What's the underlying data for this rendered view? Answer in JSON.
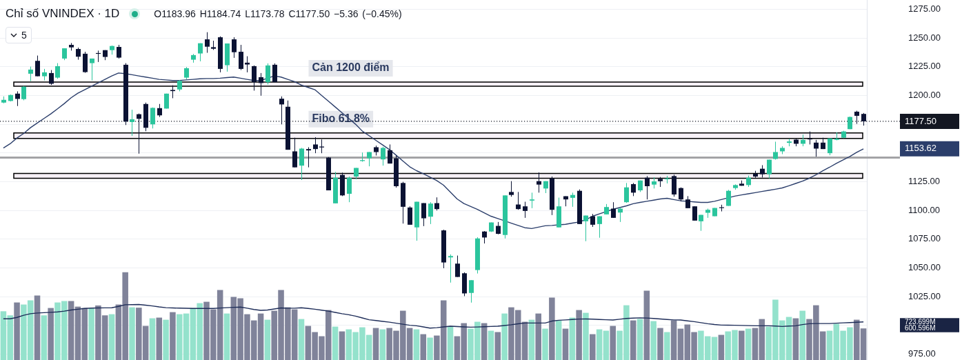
{
  "chart_data": {
    "type": "candlestick",
    "title": "Chỉ số VNINDEX · 1D",
    "subtitle": "O1183.96 H1184.74 L1173.78 C1177.50 −5.36 (−0.45%)",
    "categories": [
      null,
      null,
      null,
      null,
      null,
      null,
      null,
      null,
      null,
      null,
      null,
      null,
      null,
      null,
      null,
      null,
      null,
      null,
      null,
      null,
      null,
      null,
      null,
      null,
      null,
      null,
      null,
      null,
      null,
      null,
      null,
      null,
      null,
      null,
      null,
      null,
      null,
      null,
      null,
      null,
      null,
      null,
      null,
      null,
      null,
      null,
      null,
      null,
      null,
      null,
      null,
      null,
      null,
      null,
      null,
      null,
      null,
      null,
      null,
      null,
      null,
      null,
      null,
      null,
      null,
      null,
      null,
      null,
      null,
      null,
      null,
      null,
      null,
      null,
      null,
      null,
      null,
      null,
      null,
      null,
      null,
      null,
      null,
      null,
      null,
      null,
      null,
      null,
      null,
      null,
      null,
      null,
      null,
      null,
      null,
      null,
      null,
      null,
      null,
      null,
      null,
      null,
      null,
      null,
      null,
      null,
      null,
      null,
      null,
      null,
      null,
      null,
      null,
      null,
      null,
      null,
      null,
      null,
      null,
      null,
      null,
      null,
      null,
      null,
      null,
      null,
      null,
      null
    ],
    "ohlc": [
      [
        1193.8,
        1199.2,
        1193.2,
        1196.2
      ],
      [
        1195.2,
        1200.8,
        1194.8,
        1200.4
      ],
      [
        1201.6,
        1203.6,
        1190.8,
        1197.0
      ],
      [
        1196.8,
        1208.2,
        1195.8,
        1207.6
      ],
      [
        1218.9,
        1225.1,
        1212.5,
        1222.5
      ],
      [
        1230.1,
        1234.7,
        1216.7,
        1216.7
      ],
      [
        1216.7,
        1223.1,
        1213.1,
        1220.1
      ],
      [
        1219.5,
        1222.1,
        1209.2,
        1210.2
      ],
      [
        1215.5,
        1228.1,
        1214.5,
        1225.5
      ],
      [
        1232.1,
        1241.0,
        1230.7,
        1241.0
      ],
      [
        1244.0,
        1245.6,
        1239.0,
        1241.8
      ],
      [
        1240.4,
        1241.6,
        1231.1,
        1233.7
      ],
      [
        1236.3,
        1238.0,
        1219.7,
        1220.3
      ],
      [
        1228.1,
        1232.1,
        1213.1,
        1232.1
      ],
      [
        1236.9,
        1239.0,
        1229.1,
        1236.5
      ],
      [
        1239.4,
        1239.4,
        1230.7,
        1233.5
      ],
      [
        1239.4,
        1243.4,
        1235.5,
        1243.0
      ],
      [
        1242.2,
        1244.0,
        1232.1,
        1232.9
      ],
      [
        1226.7,
        1228.1,
        1174.3,
        1177.3
      ],
      [
        1176.9,
        1187.6,
        1164.9,
        1179.3
      ],
      [
        1183.7,
        1184.3,
        1149.4,
        1179.7
      ],
      [
        1192.6,
        1193.8,
        1168.9,
        1171.9
      ],
      [
        1174.9,
        1189.6,
        1171.3,
        1189.2
      ],
      [
        1189.0,
        1192.6,
        1181.3,
        1182.7
      ],
      [
        1188.6,
        1201.6,
        1188.6,
        1201.6
      ],
      [
        1204.8,
        1208.8,
        1197.6,
        1203.8
      ],
      [
        1205.2,
        1213.5,
        1203.6,
        1212.7
      ],
      [
        1215.5,
        1224.7,
        1214.1,
        1223.7
      ],
      [
        1231.1,
        1236.1,
        1228.5,
        1235.1
      ],
      [
        1236.5,
        1245.4,
        1229.7,
        1245.4
      ],
      [
        1248.8,
        1255.0,
        1237.1,
        1242.4
      ],
      [
        1242.0,
        1247.6,
        1239.6,
        1240.6
      ],
      [
        1250.6,
        1251.4,
        1220.1,
        1223.1
      ],
      [
        1226.3,
        1245.2,
        1220.7,
        1245.2
      ],
      [
        1248.8,
        1250.6,
        1232.7,
        1237.6
      ],
      [
        1238.0,
        1244.0,
        1222.1,
        1223.1
      ],
      [
        1228.5,
        1234.1,
        1220.1,
        1226.9
      ],
      [
        1225.5,
        1226.1,
        1204.2,
        1211.6
      ],
      [
        1215.9,
        1219.5,
        1199.8,
        1210.8
      ],
      [
        1211.6,
        1227.9,
        1209.6,
        1226.1
      ],
      [
        1226.7,
        1227.9,
        1211.6,
        1211.6
      ],
      [
        1197.2,
        1199.2,
        1174.9,
        1192.2
      ],
      [
        1190.2,
        1195.6,
        1152.8,
        1152.8
      ],
      [
        1151.4,
        1163.3,
        1137.5,
        1137.5
      ],
      [
        1139.0,
        1154.4,
        1126.5,
        1153.8
      ],
      [
        1153.4,
        1155.0,
        1137.5,
        1152.2
      ],
      [
        1157.4,
        1163.7,
        1149.8,
        1153.4
      ],
      [
        1155.6,
        1161.8,
        1149.8,
        1154.8
      ],
      [
        1146.0,
        1146.4,
        1117.5,
        1117.5
      ],
      [
        1106.2,
        1133.5,
        1106.2,
        1128.5
      ],
      [
        1130.9,
        1132.9,
        1112.5,
        1113.1
      ],
      [
        1114.5,
        1129.5,
        1107.2,
        1128.5
      ],
      [
        1129.5,
        1137.0,
        1127.1,
        1137.0
      ],
      [
        1143.0,
        1150.4,
        1142.4,
        1143.8
      ],
      [
        1145.4,
        1150.8,
        1138.4,
        1150.8
      ],
      [
        1155.0,
        1156.4,
        1147.8,
        1150.8
      ],
      [
        1144.4,
        1155.4,
        1139.0,
        1154.4
      ],
      [
        1152.4,
        1157.4,
        1140.8,
        1140.8
      ],
      [
        1145.4,
        1147.8,
        1119.9,
        1121.1
      ],
      [
        1123.9,
        1124.9,
        1088.6,
        1103.2
      ],
      [
        1102.6,
        1103.6,
        1087.6,
        1087.6
      ],
      [
        1085.3,
        1107.6,
        1073.7,
        1107.6
      ],
      [
        1106.4,
        1106.4,
        1086.4,
        1093.2
      ],
      [
        1094.6,
        1107.2,
        1088.2,
        1106.0
      ],
      [
        1106.4,
        1111.4,
        1100.0,
        1101.2
      ],
      [
        1082.7,
        1083.3,
        1049.8,
        1054.8
      ],
      [
        1059.2,
        1061.8,
        1037.3,
        1060.4
      ],
      [
        1053.8,
        1060.8,
        1042.2,
        1042.2
      ],
      [
        1045.4,
        1046.2,
        1025.5,
        1027.9
      ],
      [
        1028.3,
        1039.4,
        1019.9,
        1039.4
      ],
      [
        1048.2,
        1076.7,
        1045.2,
        1075.7
      ],
      [
        1081.7,
        1082.1,
        1071.3,
        1076.5
      ],
      [
        1081.7,
        1089.6,
        1081.3,
        1089.6
      ],
      [
        1086.6,
        1090.0,
        1079.3,
        1079.7
      ],
      [
        1078.7,
        1113.1,
        1075.7,
        1113.1
      ],
      [
        1116.1,
        1125.5,
        1112.0,
        1113.5
      ],
      [
        1105.2,
        1116.1,
        1100.6,
        1101.2
      ],
      [
        1103.6,
        1107.6,
        1093.6,
        1099.6
      ],
      [
        1108.6,
        1115.5,
        1102.0,
        1109.6
      ],
      [
        1125.5,
        1133.1,
        1115.5,
        1122.5
      ],
      [
        1119.1,
        1125.5,
        1115.1,
        1125.5
      ],
      [
        1127.9,
        1129.5,
        1096.0,
        1100.6
      ],
      [
        1085.3,
        1111.2,
        1085.3,
        1103.6
      ],
      [
        1112.4,
        1112.4,
        1103.6,
        1109.6
      ],
      [
        1111.0,
        1115.5,
        1103.2,
        1113.5
      ],
      [
        1117.1,
        1118.3,
        1088.2,
        1088.2
      ],
      [
        1090.6,
        1095.6,
        1073.3,
        1095.6
      ],
      [
        1095.0,
        1097.0,
        1085.7,
        1087.6
      ],
      [
        1088.2,
        1095.0,
        1076.3,
        1095.0
      ],
      [
        1096.6,
        1105.6,
        1096.6,
        1103.0
      ],
      [
        1101.6,
        1107.2,
        1093.6,
        1093.6
      ],
      [
        1098.2,
        1102.6,
        1090.0,
        1101.6
      ],
      [
        1107.2,
        1123.9,
        1106.6,
        1120.1
      ],
      [
        1122.9,
        1123.9,
        1112.5,
        1115.5
      ],
      [
        1117.5,
        1126.1,
        1116.1,
        1126.1
      ],
      [
        1128.5,
        1129.9,
        1109.6,
        1121.1
      ],
      [
        1122.5,
        1128.9,
        1119.1,
        1125.3
      ],
      [
        1127.5,
        1129.1,
        1120.5,
        1125.5
      ],
      [
        1127.1,
        1130.1,
        1123.5,
        1127.9
      ],
      [
        1129.9,
        1131.1,
        1112.0,
        1113.9
      ],
      [
        1119.5,
        1120.1,
        1108.0,
        1109.6
      ],
      [
        1109.6,
        1112.5,
        1102.0,
        1102.0
      ],
      [
        1103.6,
        1103.6,
        1091.2,
        1091.2
      ],
      [
        1090.6,
        1096.2,
        1082.3,
        1096.2
      ],
      [
        1098.0,
        1101.6,
        1093.6,
        1100.6
      ],
      [
        1095.0,
        1102.2,
        1095.0,
        1102.2
      ],
      [
        1102.8,
        1105.0,
        1099.2,
        1102.2
      ],
      [
        1104.0,
        1117.9,
        1104.0,
        1117.1
      ],
      [
        1119.5,
        1122.7,
        1118.1,
        1122.1
      ],
      [
        1123.3,
        1126.1,
        1121.5,
        1121.5
      ],
      [
        1122.1,
        1130.3,
        1120.5,
        1128.5
      ],
      [
        1131.9,
        1134.5,
        1128.5,
        1129.5
      ],
      [
        1136.3,
        1139.4,
        1128.7,
        1131.5
      ],
      [
        1131.5,
        1144.2,
        1127.9,
        1144.2
      ],
      [
        1144.8,
        1159.8,
        1144.2,
        1150.8
      ],
      [
        1151.4,
        1155.8,
        1149.0,
        1154.4
      ],
      [
        1158.8,
        1162.4,
        1155.8,
        1160.0
      ],
      [
        1161.6,
        1162.4,
        1155.8,
        1158.0
      ],
      [
        1158.0,
        1165.9,
        1155.8,
        1161.4
      ],
      [
        1162.5,
        1168.7,
        1157.4,
        1161.8
      ],
      [
        1159.0,
        1161.4,
        1146.8,
        1153.8
      ],
      [
        1159.0,
        1163.3,
        1153.4,
        1153.4
      ],
      [
        1149.8,
        1162.7,
        1148.0,
        1162.7
      ],
      [
        1161.4,
        1167.9,
        1161.0,
        1162.5
      ],
      [
        1163.3,
        1169.3,
        1162.9,
        1168.7
      ],
      [
        1170.7,
        1181.7,
        1170.7,
        1181.3
      ],
      [
        1185.9,
        1186.7,
        1175.3,
        1182.3
      ],
      [
        1183.96,
        1184.74,
        1173.78,
        1177.5
      ]
    ],
    "colors": [
      "#2bc59d",
      "#2bc59d",
      "#0b1233",
      "#2bc59d",
      "#2bc59d",
      "#0b1233",
      "#2bc59d",
      "#0b1233",
      "#2bc59d",
      "#2bc59d",
      "#0b1233",
      "#0b1233",
      "#0b1233",
      "#2bc59d",
      "#0b1233",
      "#0b1233",
      "#2bc59d",
      "#0b1233",
      "#0b1233",
      "#2bc59d",
      "#0b1233",
      "#0b1233",
      "#2bc59d",
      "#0b1233",
      "#2bc59d",
      "#0b1233",
      "#2bc59d",
      "#2bc59d",
      "#2bc59d",
      "#2bc59d",
      "#0b1233",
      "#0b1233",
      "#0b1233",
      "#2bc59d",
      "#0b1233",
      "#0b1233",
      "#0b1233",
      "#0b1233",
      "#0b1233",
      "#2bc59d",
      "#0b1233",
      "#0b1233",
      "#0b1233",
      "#0b1233",
      "#2bc59d",
      "#0b1233",
      "#0b1233",
      "#0b1233",
      "#0b1233",
      "#2bc59d",
      "#0b1233",
      "#2bc59d",
      "#2bc59d",
      "#2bc59d",
      "#2bc59d",
      "#0b1233",
      "#2bc59d",
      "#0b1233",
      "#0b1233",
      "#0b1233",
      "#0b1233",
      "#2bc59d",
      "#0b1233",
      "#2bc59d",
      "#0b1233",
      "#0b1233",
      "#2bc59d",
      "#0b1233",
      "#0b1233",
      "#2bc59d",
      "#2bc59d",
      "#0b1233",
      "#2bc59d",
      "#0b1233",
      "#2bc59d",
      "#0b1233",
      "#0b1233",
      "#0b1233",
      "#2bc59d",
      "#0b1233",
      "#2bc59d",
      "#0b1233",
      "#2bc59d",
      "#0b1233",
      "#2bc59d",
      "#0b1233",
      "#2bc59d",
      "#0b1233",
      "#2bc59d",
      "#2bc59d",
      "#0b1233",
      "#2bc59d",
      "#2bc59d",
      "#0b1233",
      "#2bc59d",
      "#0b1233",
      "#2bc59d",
      "#0b1233",
      "#2bc59d",
      "#0b1233",
      "#0b1233",
      "#0b1233",
      "#0b1233",
      "#2bc59d",
      "#2bc59d",
      "#2bc59d",
      "#0b1233",
      "#2bc59d",
      "#2bc59d",
      "#0b1233",
      "#2bc59d",
      "#0b1233",
      "#0b1233",
      "#2bc59d",
      "#2bc59d",
      "#2bc59d",
      "#2bc59d",
      "#0b1233",
      "#2bc59d",
      "#0b1233",
      "#0b1233",
      "#0b1233",
      "#2bc59d",
      "#2bc59d",
      "#2bc59d",
      "#2bc59d",
      "#0b1233",
      "#0b1233"
    ],
    "series": [
      {
        "type": "line",
        "color": "#2b3e6b",
        "values": [
          1154.3,
          1158,
          1163,
          1167,
          1172,
          1176,
          1180,
          1184,
          1188.4,
          1193,
          1198,
          1202,
          1205,
          1208,
          1211,
          1214,
          1217,
          1219.5,
          1219,
          1218,
          1217,
          1216,
          1215,
          1214,
          1213.5,
          1213,
          1213,
          1213.5,
          1214,
          1214.5,
          1214.7,
          1214.7,
          1215,
          1215.5,
          1216,
          1215,
          1214,
          1213,
          1213,
          1215,
          1217,
          1216,
          1214,
          1212,
          1209,
          1207,
          1205,
          1200,
          1195,
          1190,
          1185,
          1180,
          1175,
          1169,
          1165,
          1161,
          1157,
          1153,
          1148,
          1143,
          1138,
          1134.6,
          1132,
          1129,
          1126,
          1122,
          1116,
          1110,
          1106,
          1103.5,
          1101,
          1098,
          1095,
          1093,
          1091,
          1089,
          1087,
          1085,
          1084.3,
          1085.5,
          1086.7,
          1087,
          1087.5,
          1088,
          1089,
          1090,
          1092,
          1095,
          1097,
          1099,
          1101,
          1102.5,
          1104,
          1105.9,
          1107,
          1108,
          1109,
          1110,
          1110.6,
          1109.5,
          1108.4,
          1108,
          1107.5,
          1107,
          1107,
          1108,
          1109.5,
          1111,
          1112.5,
          1113.5,
          1114.5,
          1115.5,
          1116.5,
          1117.5,
          1118.5,
          1119.6,
          1121.5,
          1123.5,
          1125.5,
          1128,
          1131,
          1134.5,
          1137.6,
          1141,
          1144,
          1147,
          1150.5,
          1153.62
        ]
      },
      {
        "type": "bar",
        "axis": "y2",
        "colors": [
          "#94e2cc",
          "#94e2cc",
          "#80839a",
          "#94e2cc",
          "#94e2cc",
          "#80839a",
          "#94e2cc",
          "#80839a",
          "#94e2cc",
          "#94e2cc",
          "#80839a",
          "#80839a",
          "#80839a",
          "#94e2cc",
          "#80839a",
          "#80839a",
          "#94e2cc",
          "#80839a",
          "#80839a",
          "#94e2cc",
          "#80839a",
          "#80839a",
          "#94e2cc",
          "#80839a",
          "#94e2cc",
          "#80839a",
          "#94e2cc",
          "#94e2cc",
          "#94e2cc",
          "#94e2cc",
          "#80839a",
          "#80839a",
          "#80839a",
          "#94e2cc",
          "#80839a",
          "#80839a",
          "#80839a",
          "#80839a",
          "#80839a",
          "#94e2cc",
          "#80839a",
          "#80839a",
          "#80839a",
          "#80839a",
          "#94e2cc",
          "#80839a",
          "#80839a",
          "#80839a",
          "#80839a",
          "#94e2cc",
          "#80839a",
          "#94e2cc",
          "#94e2cc",
          "#94e2cc",
          "#94e2cc",
          "#80839a",
          "#94e2cc",
          "#80839a",
          "#80839a",
          "#80839a",
          "#80839a",
          "#94e2cc",
          "#80839a",
          "#94e2cc",
          "#80839a",
          "#80839a",
          "#94e2cc",
          "#80839a",
          "#80839a",
          "#94e2cc",
          "#94e2cc",
          "#80839a",
          "#94e2cc",
          "#80839a",
          "#94e2cc",
          "#80839a",
          "#80839a",
          "#80839a",
          "#94e2cc",
          "#80839a",
          "#94e2cc",
          "#80839a",
          "#94e2cc",
          "#80839a",
          "#94e2cc",
          "#80839a",
          "#94e2cc",
          "#80839a",
          "#94e2cc",
          "#94e2cc",
          "#80839a",
          "#94e2cc",
          "#94e2cc",
          "#80839a",
          "#94e2cc",
          "#80839a",
          "#94e2cc",
          "#80839a",
          "#94e2cc",
          "#80839a",
          "#80839a",
          "#80839a",
          "#80839a",
          "#94e2cc",
          "#94e2cc",
          "#94e2cc",
          "#80839a",
          "#94e2cc",
          "#94e2cc",
          "#80839a",
          "#94e2cc",
          "#80839a",
          "#80839a",
          "#94e2cc",
          "#94e2cc",
          "#94e2cc",
          "#94e2cc",
          "#80839a",
          "#94e2cc",
          "#80839a",
          "#80839a",
          "#80839a",
          "#94e2cc",
          "#94e2cc",
          "#94e2cc",
          "#94e2cc",
          "#80839a",
          "#80839a"
        ],
        "values": [
          927,
          849,
          1094,
          1055,
          1133,
          1225,
          849,
          989,
          1094,
          1120,
          1120,
          1015,
          989,
          989,
          1037,
          849,
          871,
          1055,
          1670,
          1002,
          995,
          648,
          793,
          806,
          766,
          910,
          871,
          884,
          989,
          1081,
          1107,
          963,
          1330,
          884,
          1199,
          1172,
          871,
          753,
          884,
          766,
          937,
          1330,
          1002,
          963,
          779,
          648,
          531,
          452,
          950,
          635,
          544,
          583,
          531,
          622,
          478,
          609,
          583,
          609,
          557,
          937,
          609,
          583,
          491,
          426,
          465,
          1133,
          635,
          452,
          701,
          596,
          727,
          701,
          557,
          531,
          884,
          1002,
          950,
          727,
          766,
          884,
          596,
          1186,
          753,
          596,
          806,
          950,
          897,
          491,
          583,
          557,
          648,
          557,
          1041,
          753,
          779,
          1317,
          740,
          609,
          531,
          753,
          596,
          675,
          531,
          557,
          452,
          439,
          478,
          544,
          570,
          557,
          596,
          609,
          779,
          635,
          1146,
          753,
          819,
          793,
          937,
          779,
          1041,
          544,
          557,
          688,
          557,
          622,
          766,
          600.596
        ]
      },
      {
        "type": "line",
        "axis": "y2",
        "color": "#1d2c58",
        "values": [
          783,
          783,
          810,
          850,
          880,
          893,
          900,
          907,
          914,
          930,
          950,
          965,
          980,
          987,
          990,
          992,
          993,
          1020,
          1051,
          1053,
          1055,
          1042,
          1028,
          1010,
          995,
          990,
          986,
          983,
          981,
          981,
          981,
          981,
          988,
          995,
          1001,
          1006,
          985,
          960,
          944,
          950,
          970,
          990,
          985,
          985,
          993,
          980,
          965,
          948,
          930,
          905,
          880,
          860,
          835,
          800,
          765,
          750,
          735,
          720,
          700,
          680,
          660,
          651,
          630,
          607,
          615,
          630,
          642,
          636,
          630,
          624,
          628,
          632,
          637,
          642,
          655,
          670,
          688,
          703,
          703,
          703,
          703,
          740,
          755,
          762,
          770,
          778,
          781,
          776,
          770,
          765,
          760,
          775,
          790,
          796,
          802,
          798,
          790,
          780,
          770,
          762,
          760,
          745,
          730,
          710,
          690,
          675,
          664,
          662,
          660,
          657,
          654,
          651,
          651,
          651,
          645,
          638,
          645,
          651,
          673,
          690,
          694,
          694,
          694,
          700,
          706,
          712,
          718,
          723.699
        ]
      }
    ],
    "ylim": [
      970,
      1283
    ],
    "yticks": [
      {
        "value": 975,
        "label": "975.00"
      },
      {
        "value": 1000,
        "label": null
      },
      {
        "value": 1025,
        "label": "1025.00"
      },
      {
        "value": 1050,
        "label": "1050.00"
      },
      {
        "value": 1075,
        "label": "1075.00"
      },
      {
        "value": 1100,
        "label": "1100.00"
      },
      {
        "value": 1125,
        "label": "1125.00"
      },
      {
        "value": 1150,
        "label": null
      },
      {
        "value": 1175,
        "label": null
      },
      {
        "value": 1200,
        "label": "1200.00"
      },
      {
        "value": 1225,
        "label": "1225.00"
      },
      {
        "value": 1250,
        "label": "1250.00"
      },
      {
        "value": 1275,
        "label": "1275.00"
      }
    ],
    "y2lim": [
      0,
      6845
    ],
    "y2ticks": [
      {
        "value": 600.596,
        "label": "600.596M"
      },
      {
        "value": 723.699,
        "label": "723.699M"
      }
    ],
    "ref_lines": [
      {
        "axis": "y",
        "value": 1177.5,
        "label": "1177.50",
        "color": "#131722",
        "line_style": "dotted"
      },
      {
        "axis": "y",
        "value": 1146,
        "color": "#a3a3a6",
        "line_style": "solid"
      }
    ],
    "bands": [
      {
        "axis": "y",
        "from": 1208.1,
        "to": 1211.7,
        "label": "Cản 1200 điểm",
        "color": "#f7f1f7"
      },
      {
        "axis": "y",
        "from": 1162.7,
        "to": 1167.4,
        "label": "Fibo 61.8%",
        "color": "#f7f1f7"
      },
      {
        "axis": "y",
        "from": 1128,
        "to": 1132.2,
        "color": "#f7f1f7"
      }
    ],
    "annotations": [
      "5",
      "1153.62"
    ],
    "grid": "y",
    "legend": false,
    "marker": "none",
    "line_style": "solid",
    "tick_labels": "y"
  }
}
